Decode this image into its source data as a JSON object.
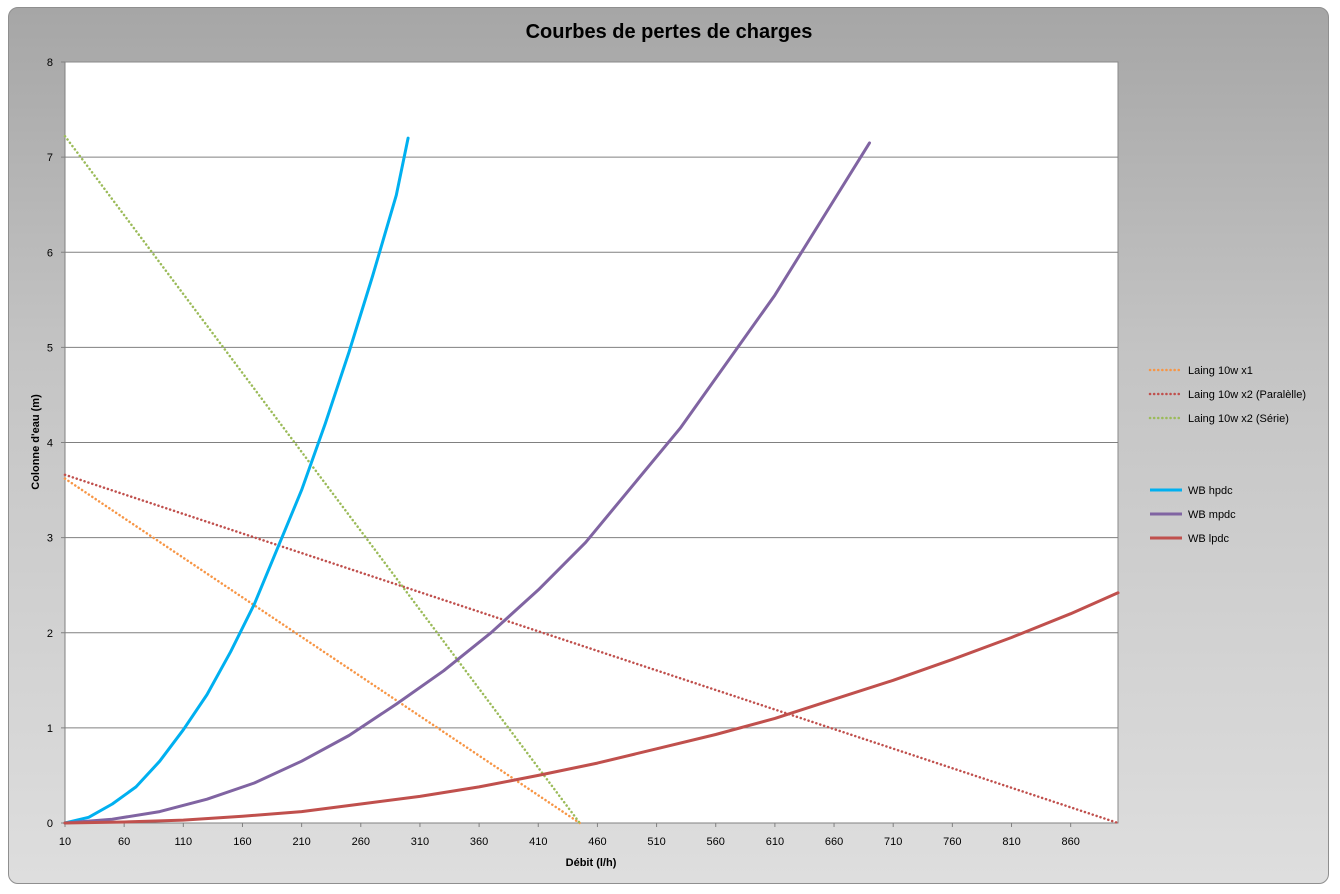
{
  "chart_data": {
    "type": "line",
    "title": "Courbes de pertes de charges",
    "xlabel": "Débit (l/h)",
    "ylabel": "Colonne d'eau (m)",
    "xlim": [
      10,
      900
    ],
    "ylim": [
      0,
      8
    ],
    "x_ticks": [
      "10",
      "60",
      "110",
      "160",
      "210",
      "260",
      "310",
      "360",
      "410",
      "460",
      "510",
      "560",
      "610",
      "660",
      "710",
      "760",
      "810",
      "860"
    ],
    "y_ticks": [
      "0",
      "1",
      "2",
      "3",
      "4",
      "5",
      "6",
      "7",
      "8"
    ],
    "grid": "horizontal",
    "legend_position": "right",
    "series": [
      {
        "name": "Laing 10w x1",
        "color": "#F79646",
        "style": "dotted",
        "x": [
          10,
          445
        ],
        "y": [
          3.62,
          0.0
        ]
      },
      {
        "name": "Laing 10w x2 (Paralèlle)",
        "color": "#C0504D",
        "style": "dotted",
        "x": [
          10,
          900
        ],
        "y": [
          3.66,
          0.0
        ]
      },
      {
        "name": "Laing 10w x2 (Série)",
        "color": "#9BBB59",
        "style": "dotted",
        "x": [
          10,
          445
        ],
        "y": [
          7.22,
          0.0
        ]
      },
      {
        "name": "WB hpdc",
        "color": "#00B0F0",
        "style": "solid",
        "x": [
          10,
          30,
          50,
          70,
          90,
          110,
          130,
          150,
          170,
          190,
          210,
          230,
          250,
          270,
          290,
          300
        ],
        "y": [
          0.0,
          0.06,
          0.2,
          0.38,
          0.65,
          0.98,
          1.35,
          1.8,
          2.3,
          2.9,
          3.5,
          4.2,
          4.95,
          5.75,
          6.6,
          7.2
        ]
      },
      {
        "name": "WB mpdc",
        "color": "#8064A2",
        "style": "solid",
        "x": [
          10,
          50,
          90,
          130,
          170,
          210,
          250,
          290,
          330,
          370,
          410,
          450,
          490,
          530,
          570,
          610,
          650,
          690
        ],
        "y": [
          0.0,
          0.04,
          0.12,
          0.25,
          0.42,
          0.65,
          0.92,
          1.25,
          1.6,
          2.0,
          2.45,
          2.95,
          3.55,
          4.15,
          4.85,
          5.55,
          6.35,
          7.15
        ]
      },
      {
        "name": "WB lpdc",
        "color": "#C0504D",
        "style": "solid",
        "x": [
          10,
          60,
          110,
          160,
          210,
          260,
          310,
          360,
          410,
          460,
          510,
          560,
          610,
          660,
          710,
          760,
          810,
          860,
          900
        ],
        "y": [
          0.0,
          0.01,
          0.03,
          0.07,
          0.12,
          0.2,
          0.28,
          0.38,
          0.5,
          0.63,
          0.78,
          0.93,
          1.1,
          1.3,
          1.5,
          1.72,
          1.95,
          2.2,
          2.42
        ]
      }
    ]
  }
}
